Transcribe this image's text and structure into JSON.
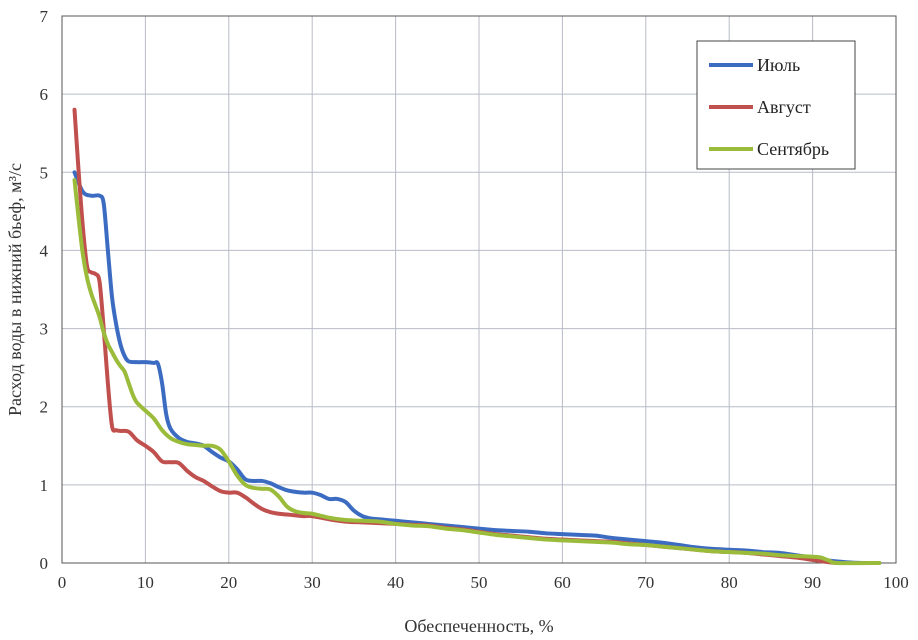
{
  "chart_data": {
    "type": "line",
    "xlabel": "Обеспеченность, %",
    "ylabel": "Расход воды в нижний бьеф, м³/с",
    "xlim": [
      0,
      100
    ],
    "ylim": [
      0,
      7
    ],
    "xticks": [
      0,
      10,
      20,
      30,
      40,
      50,
      60,
      70,
      80,
      90,
      100
    ],
    "yticks": [
      0,
      1,
      2,
      3,
      4,
      5,
      6,
      7
    ],
    "grid": true,
    "legend": "top-right",
    "series": [
      {
        "name": "Июль",
        "color": "#3c6cc2",
        "points": [
          [
            1.5,
            5.0
          ],
          [
            2.5,
            4.75
          ],
          [
            3.5,
            4.7
          ],
          [
            4.5,
            4.7
          ],
          [
            5.0,
            4.6
          ],
          [
            5.5,
            4.0
          ],
          [
            6.0,
            3.4
          ],
          [
            6.5,
            3.05
          ],
          [
            7.0,
            2.8
          ],
          [
            7.5,
            2.65
          ],
          [
            8.0,
            2.58
          ],
          [
            9.0,
            2.57
          ],
          [
            10.0,
            2.57
          ],
          [
            11.0,
            2.56
          ],
          [
            11.5,
            2.55
          ],
          [
            12.0,
            2.3
          ],
          [
            12.5,
            1.9
          ],
          [
            13.0,
            1.72
          ],
          [
            14.0,
            1.6
          ],
          [
            15.0,
            1.55
          ],
          [
            16.0,
            1.53
          ],
          [
            17.0,
            1.5
          ],
          [
            18.0,
            1.42
          ],
          [
            19.0,
            1.35
          ],
          [
            20.0,
            1.3
          ],
          [
            21.0,
            1.2
          ],
          [
            22.0,
            1.07
          ],
          [
            23.0,
            1.05
          ],
          [
            24.0,
            1.05
          ],
          [
            25.0,
            1.02
          ],
          [
            26.0,
            0.97
          ],
          [
            27.0,
            0.93
          ],
          [
            28.0,
            0.91
          ],
          [
            29.0,
            0.9
          ],
          [
            30.0,
            0.9
          ],
          [
            31.0,
            0.87
          ],
          [
            32.0,
            0.82
          ],
          [
            33.0,
            0.82
          ],
          [
            34.0,
            0.78
          ],
          [
            35.0,
            0.67
          ],
          [
            36.0,
            0.6
          ],
          [
            37.0,
            0.57
          ],
          [
            38.0,
            0.56
          ],
          [
            40.0,
            0.54
          ],
          [
            42.0,
            0.52
          ],
          [
            44.0,
            0.5
          ],
          [
            46.0,
            0.48
          ],
          [
            48.0,
            0.46
          ],
          [
            50.0,
            0.44
          ],
          [
            52.0,
            0.42
          ],
          [
            54.0,
            0.41
          ],
          [
            56.0,
            0.4
          ],
          [
            58.0,
            0.38
          ],
          [
            60.0,
            0.37
          ],
          [
            62.0,
            0.36
          ],
          [
            64.0,
            0.35
          ],
          [
            66.0,
            0.32
          ],
          [
            68.0,
            0.3
          ],
          [
            70.0,
            0.28
          ],
          [
            72.0,
            0.26
          ],
          [
            74.0,
            0.23
          ],
          [
            76.0,
            0.2
          ],
          [
            78.0,
            0.18
          ],
          [
            80.0,
            0.17
          ],
          [
            82.0,
            0.16
          ],
          [
            84.0,
            0.14
          ],
          [
            86.0,
            0.13
          ],
          [
            88.0,
            0.1
          ],
          [
            90.0,
            0.07
          ],
          [
            92.0,
            0.03
          ],
          [
            94.0,
            0.01
          ],
          [
            96.0,
            0.0
          ],
          [
            98.0,
            0.0
          ]
        ]
      },
      {
        "name": "Август",
        "color": "#c0504d",
        "points": [
          [
            1.5,
            5.8
          ],
          [
            2.0,
            5.0
          ],
          [
            2.5,
            4.3
          ],
          [
            3.0,
            3.8
          ],
          [
            3.5,
            3.72
          ],
          [
            4.0,
            3.7
          ],
          [
            4.5,
            3.6
          ],
          [
            5.0,
            3.0
          ],
          [
            5.5,
            2.3
          ],
          [
            6.0,
            1.75
          ],
          [
            6.5,
            1.7
          ],
          [
            7.0,
            1.69
          ],
          [
            8.0,
            1.68
          ],
          [
            9.0,
            1.57
          ],
          [
            10.0,
            1.5
          ],
          [
            11.0,
            1.42
          ],
          [
            12.0,
            1.3
          ],
          [
            13.0,
            1.29
          ],
          [
            14.0,
            1.28
          ],
          [
            15.0,
            1.18
          ],
          [
            16.0,
            1.1
          ],
          [
            17.0,
            1.05
          ],
          [
            18.0,
            0.98
          ],
          [
            19.0,
            0.92
          ],
          [
            20.0,
            0.9
          ],
          [
            21.0,
            0.9
          ],
          [
            22.0,
            0.84
          ],
          [
            23.0,
            0.76
          ],
          [
            24.0,
            0.69
          ],
          [
            25.0,
            0.65
          ],
          [
            26.0,
            0.63
          ],
          [
            27.0,
            0.62
          ],
          [
            28.0,
            0.61
          ],
          [
            29.0,
            0.6
          ],
          [
            30.0,
            0.6
          ],
          [
            32.0,
            0.56
          ],
          [
            34.0,
            0.53
          ],
          [
            36.0,
            0.52
          ],
          [
            38.0,
            0.51
          ],
          [
            40.0,
            0.5
          ],
          [
            42.0,
            0.49
          ],
          [
            44.0,
            0.48
          ],
          [
            46.0,
            0.45
          ],
          [
            48.0,
            0.43
          ],
          [
            50.0,
            0.4
          ],
          [
            52.0,
            0.37
          ],
          [
            54.0,
            0.35
          ],
          [
            56.0,
            0.33
          ],
          [
            58.0,
            0.31
          ],
          [
            60.0,
            0.3
          ],
          [
            62.0,
            0.29
          ],
          [
            64.0,
            0.28
          ],
          [
            66.0,
            0.27
          ],
          [
            68.0,
            0.25
          ],
          [
            70.0,
            0.23
          ],
          [
            72.0,
            0.21
          ],
          [
            74.0,
            0.19
          ],
          [
            76.0,
            0.17
          ],
          [
            78.0,
            0.15
          ],
          [
            80.0,
            0.14
          ],
          [
            82.0,
            0.13
          ],
          [
            84.0,
            0.11
          ],
          [
            86.0,
            0.09
          ],
          [
            88.0,
            0.07
          ],
          [
            90.0,
            0.04
          ],
          [
            92.0,
            0.01
          ],
          [
            93.0,
            0.0
          ]
        ]
      },
      {
        "name": "Сентябрь",
        "color": "#9bbb3b",
        "points": [
          [
            1.5,
            4.9
          ],
          [
            2.0,
            4.4
          ],
          [
            2.5,
            3.95
          ],
          [
            3.0,
            3.65
          ],
          [
            3.5,
            3.45
          ],
          [
            4.0,
            3.3
          ],
          [
            4.5,
            3.15
          ],
          [
            5.0,
            2.95
          ],
          [
            5.5,
            2.8
          ],
          [
            6.0,
            2.7
          ],
          [
            6.5,
            2.6
          ],
          [
            7.0,
            2.52
          ],
          [
            7.5,
            2.45
          ],
          [
            8.0,
            2.3
          ],
          [
            8.5,
            2.15
          ],
          [
            9.0,
            2.05
          ],
          [
            10.0,
            1.95
          ],
          [
            11.0,
            1.85
          ],
          [
            12.0,
            1.7
          ],
          [
            13.0,
            1.6
          ],
          [
            14.0,
            1.55
          ],
          [
            15.0,
            1.52
          ],
          [
            16.0,
            1.51
          ],
          [
            17.0,
            1.5
          ],
          [
            18.0,
            1.5
          ],
          [
            19.0,
            1.45
          ],
          [
            20.0,
            1.3
          ],
          [
            21.0,
            1.12
          ],
          [
            22.0,
            1.0
          ],
          [
            23.0,
            0.96
          ],
          [
            24.0,
            0.95
          ],
          [
            25.0,
            0.94
          ],
          [
            26.0,
            0.85
          ],
          [
            27.0,
            0.72
          ],
          [
            28.0,
            0.66
          ],
          [
            29.0,
            0.64
          ],
          [
            30.0,
            0.63
          ],
          [
            32.0,
            0.58
          ],
          [
            34.0,
            0.55
          ],
          [
            36.0,
            0.54
          ],
          [
            38.0,
            0.53
          ],
          [
            40.0,
            0.5
          ],
          [
            42.0,
            0.48
          ],
          [
            44.0,
            0.47
          ],
          [
            46.0,
            0.44
          ],
          [
            48.0,
            0.42
          ],
          [
            50.0,
            0.39
          ],
          [
            52.0,
            0.36
          ],
          [
            54.0,
            0.34
          ],
          [
            56.0,
            0.32
          ],
          [
            58.0,
            0.3
          ],
          [
            60.0,
            0.29
          ],
          [
            62.0,
            0.28
          ],
          [
            64.0,
            0.27
          ],
          [
            66.0,
            0.26
          ],
          [
            68.0,
            0.24
          ],
          [
            70.0,
            0.23
          ],
          [
            72.0,
            0.21
          ],
          [
            74.0,
            0.19
          ],
          [
            76.0,
            0.17
          ],
          [
            78.0,
            0.15
          ],
          [
            80.0,
            0.14
          ],
          [
            82.0,
            0.13
          ],
          [
            84.0,
            0.12
          ],
          [
            86.0,
            0.1
          ],
          [
            88.0,
            0.09
          ],
          [
            90.0,
            0.08
          ],
          [
            91.0,
            0.07
          ],
          [
            92.0,
            0.03
          ],
          [
            93.0,
            0.0
          ],
          [
            98.0,
            0.0
          ]
        ]
      }
    ]
  }
}
